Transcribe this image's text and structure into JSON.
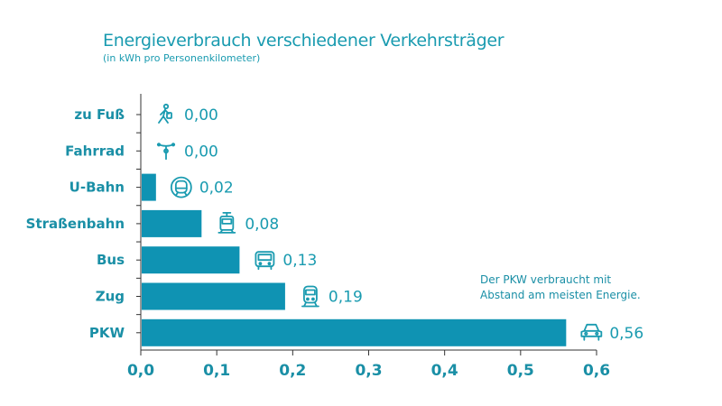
{
  "chart_data": {
    "type": "bar",
    "orientation": "horizontal",
    "title": "Energieverbrauch verschiedener Verkehrsträger",
    "subtitle": "(in kWh pro Personenkilometer)",
    "categories": [
      "zu Fuß",
      "Fahrrad",
      "U-Bahn",
      "Straßenbahn",
      "Bus",
      "Zug",
      "PKW"
    ],
    "values": [
      0.0,
      0.0,
      0.02,
      0.08,
      0.13,
      0.19,
      0.56
    ],
    "value_labels": [
      "0,00",
      "0,00",
      "0,02",
      "0,08",
      "0,13",
      "0,19",
      "0,56"
    ],
    "icons": [
      "pedestrian-icon",
      "bicycle-icon",
      "subway-icon",
      "tram-icon",
      "bus-icon",
      "train-icon",
      "car-icon"
    ],
    "xlim": [
      0,
      0.6
    ],
    "xticks": [
      "0,0",
      "0,1",
      "0,2",
      "0,3",
      "0,4",
      "0,5",
      "0,6"
    ],
    "annotation": [
      "Der PKW verbraucht mit",
      "Abstand am meisten Energie."
    ],
    "bar_color": "#0f93b3",
    "text_color": "#1a9bb0",
    "grid": false
  }
}
